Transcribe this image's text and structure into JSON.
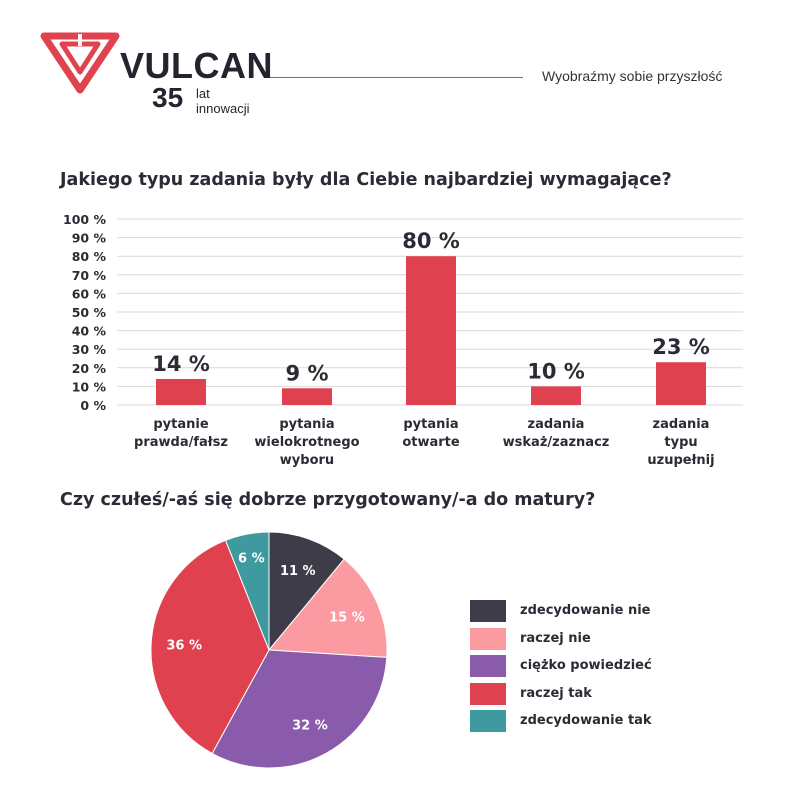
{
  "header": {
    "brand": "VULCAN",
    "anniversary_number": "35",
    "anniversary_text_line1": "lat",
    "anniversary_text_line2": "innowacji",
    "tagline": "Wyobraźmy sobie przyszłość",
    "brand_color": "#e0434e"
  },
  "questions": {
    "q1": "Jakiego typu zadania były dla Ciebie najbardziej wymagające?",
    "q2": "Czy czułeś/-aś się dobrze przygotowany/-a do matury?"
  },
  "chart_data": [
    {
      "type": "bar",
      "title": "Jakiego typu zadania były dla Ciebie najbardziej wymagające?",
      "categories": [
        [
          "pytanie",
          "prawda/fałsz"
        ],
        [
          "pytania",
          "wielokrotnego",
          "wyboru"
        ],
        [
          "pytania",
          "otwarte"
        ],
        [
          "zadania",
          "wskaż/zaznacz"
        ],
        [
          "zadania",
          "typu",
          "uzupełnij"
        ]
      ],
      "values": [
        14,
        9,
        80,
        10,
        23
      ],
      "value_labels": [
        "14 %",
        "9 %",
        "80 %",
        "10 %",
        "23 %"
      ],
      "yticks": [
        "0 %",
        "10 %",
        "20 %",
        "30 %",
        "40 %",
        "50 %",
        "60 %",
        "70 %",
        "80 %",
        "90 %",
        "100 %"
      ],
      "ylim": [
        0,
        100
      ],
      "grid": true,
      "bar_color": "#e0414e"
    },
    {
      "type": "pie",
      "title": "Czy czułeś/-aś się dobrze przygotowany/-a do matury?",
      "slices": [
        {
          "label": "zdecydowanie nie",
          "value": 11,
          "value_label": "11 %",
          "color": "#3f3c4a"
        },
        {
          "label": "raczej nie",
          "value": 15,
          "value_label": "15 %",
          "color": "#fb9aa0"
        },
        {
          "label": "ciężko powiedzieć",
          "value": 32,
          "value_label": "32 %",
          "color": "#8a5aab"
        },
        {
          "label": "raczej tak",
          "value": 36,
          "value_label": "36 %",
          "color": "#e0414e"
        },
        {
          "label": "zdecydowanie tak",
          "value": 6,
          "value_label": "6 %",
          "color": "#3f9aa0"
        }
      ],
      "legend_position": "right"
    }
  ]
}
